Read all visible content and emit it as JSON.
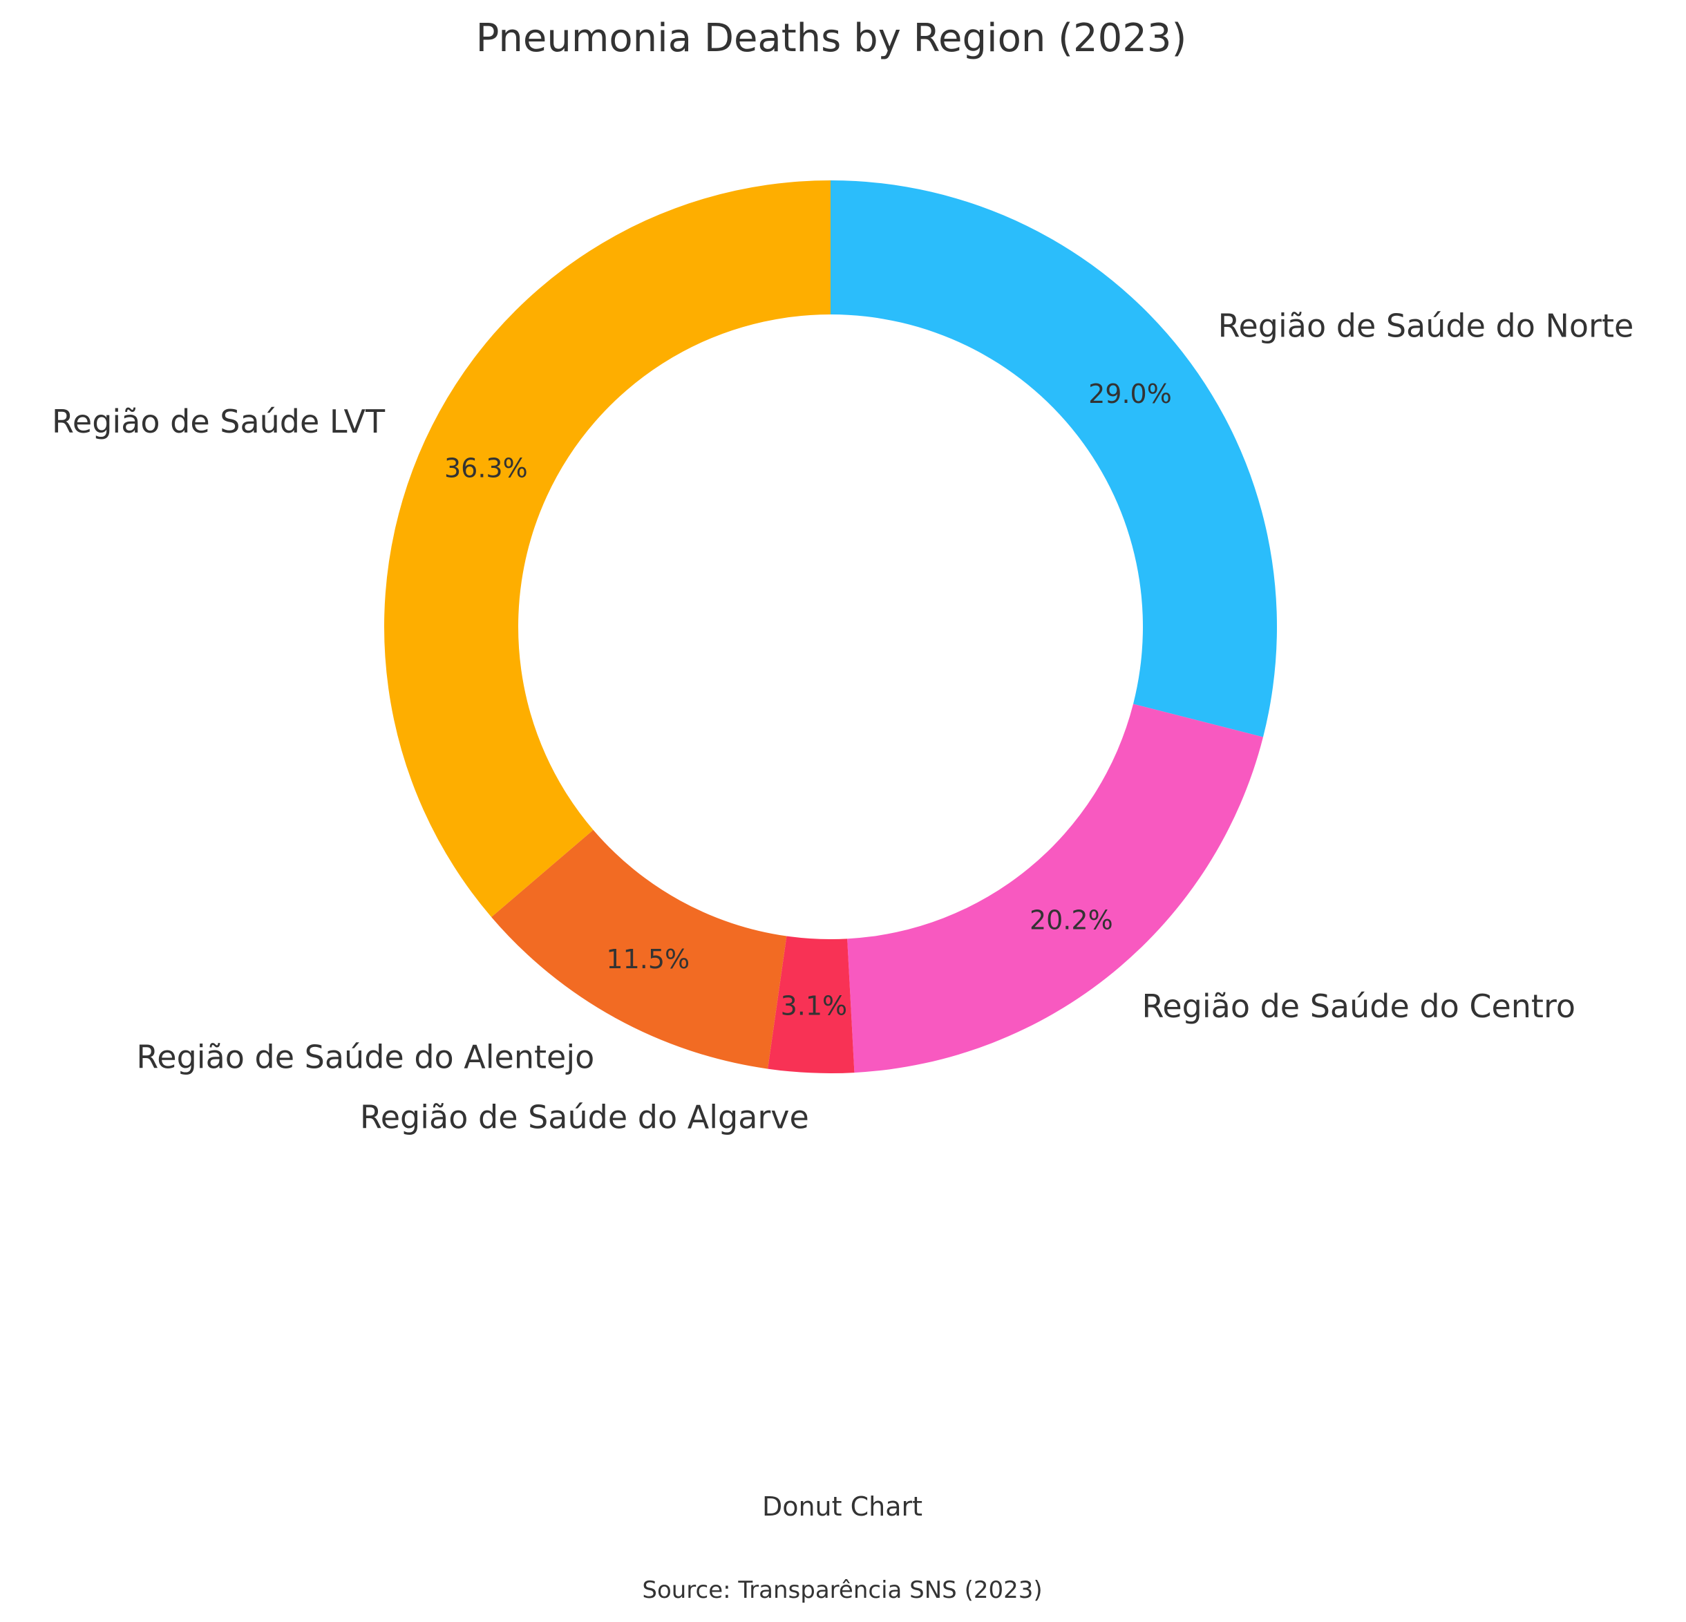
{
  "chart_data": {
    "type": "pie",
    "variant": "donut",
    "title": "Pneumonia Deaths by Region (2023)",
    "caption": "Donut Chart",
    "source": "Source: Transparência SNS (2023)",
    "start_angle_deg": 90,
    "direction": "clockwise",
    "legend": "none",
    "slices": [
      {
        "label": "Região de Saúde do Norte",
        "value": 29.0,
        "pct_label": "29.0%",
        "color": "#2bbdfb"
      },
      {
        "label": "Região de Saúde do Centro",
        "value": 20.2,
        "pct_label": "20.2%",
        "color": "#f859c0"
      },
      {
        "label": "Região de Saúde do Algarve",
        "value": 3.1,
        "pct_label": "3.1%",
        "color": "#f83255"
      },
      {
        "label": "Região de Saúde do Alentejo",
        "value": 11.5,
        "pct_label": "11.5%",
        "color": "#f26b23"
      },
      {
        "label": "Região de Saúde LVT",
        "value": 36.3,
        "pct_label": "36.3%",
        "color": "#feae00"
      }
    ]
  }
}
